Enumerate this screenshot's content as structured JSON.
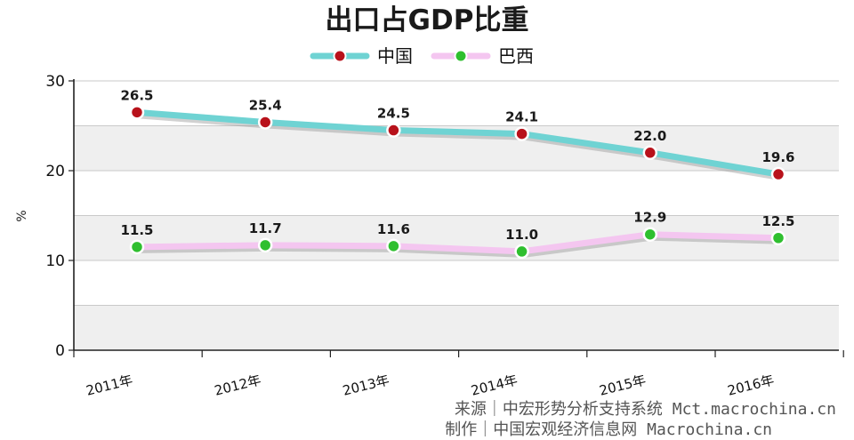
{
  "chart_data": {
    "type": "line",
    "title": "出口占GDP比重",
    "ylabel": "%",
    "xlabel": "",
    "ylim": [
      0,
      30
    ],
    "yticks": [
      "0",
      "10",
      "20",
      "30"
    ],
    "categories": [
      "2011年",
      "2012年",
      "2013年",
      "2014年",
      "2015年",
      "2016年"
    ],
    "series": [
      {
        "name": "中国",
        "values": [
          26.5,
          25.4,
          24.5,
          24.1,
          22.0,
          19.6
        ],
        "labels": [
          "26.5",
          "25.4",
          "24.5",
          "24.1",
          "22.0",
          "19.6"
        ],
        "line_color": "#6fd3d3",
        "marker_color": "#b8121b"
      },
      {
        "name": "巴西",
        "values": [
          11.5,
          11.7,
          11.6,
          11.0,
          12.9,
          12.5
        ],
        "labels": [
          "11.5",
          "11.7",
          "11.6",
          "11.0",
          "12.9",
          "12.5"
        ],
        "line_color": "#f4c6f0",
        "marker_color": "#2fbf2f"
      }
    ],
    "legend_position": "top-center",
    "grid": true
  },
  "footer": {
    "source": "来源｜中宏形势分析支持系统 Mct.macrochina.cn",
    "made_by": "制作｜中国宏观经济信息网 Macrochina.cn"
  }
}
